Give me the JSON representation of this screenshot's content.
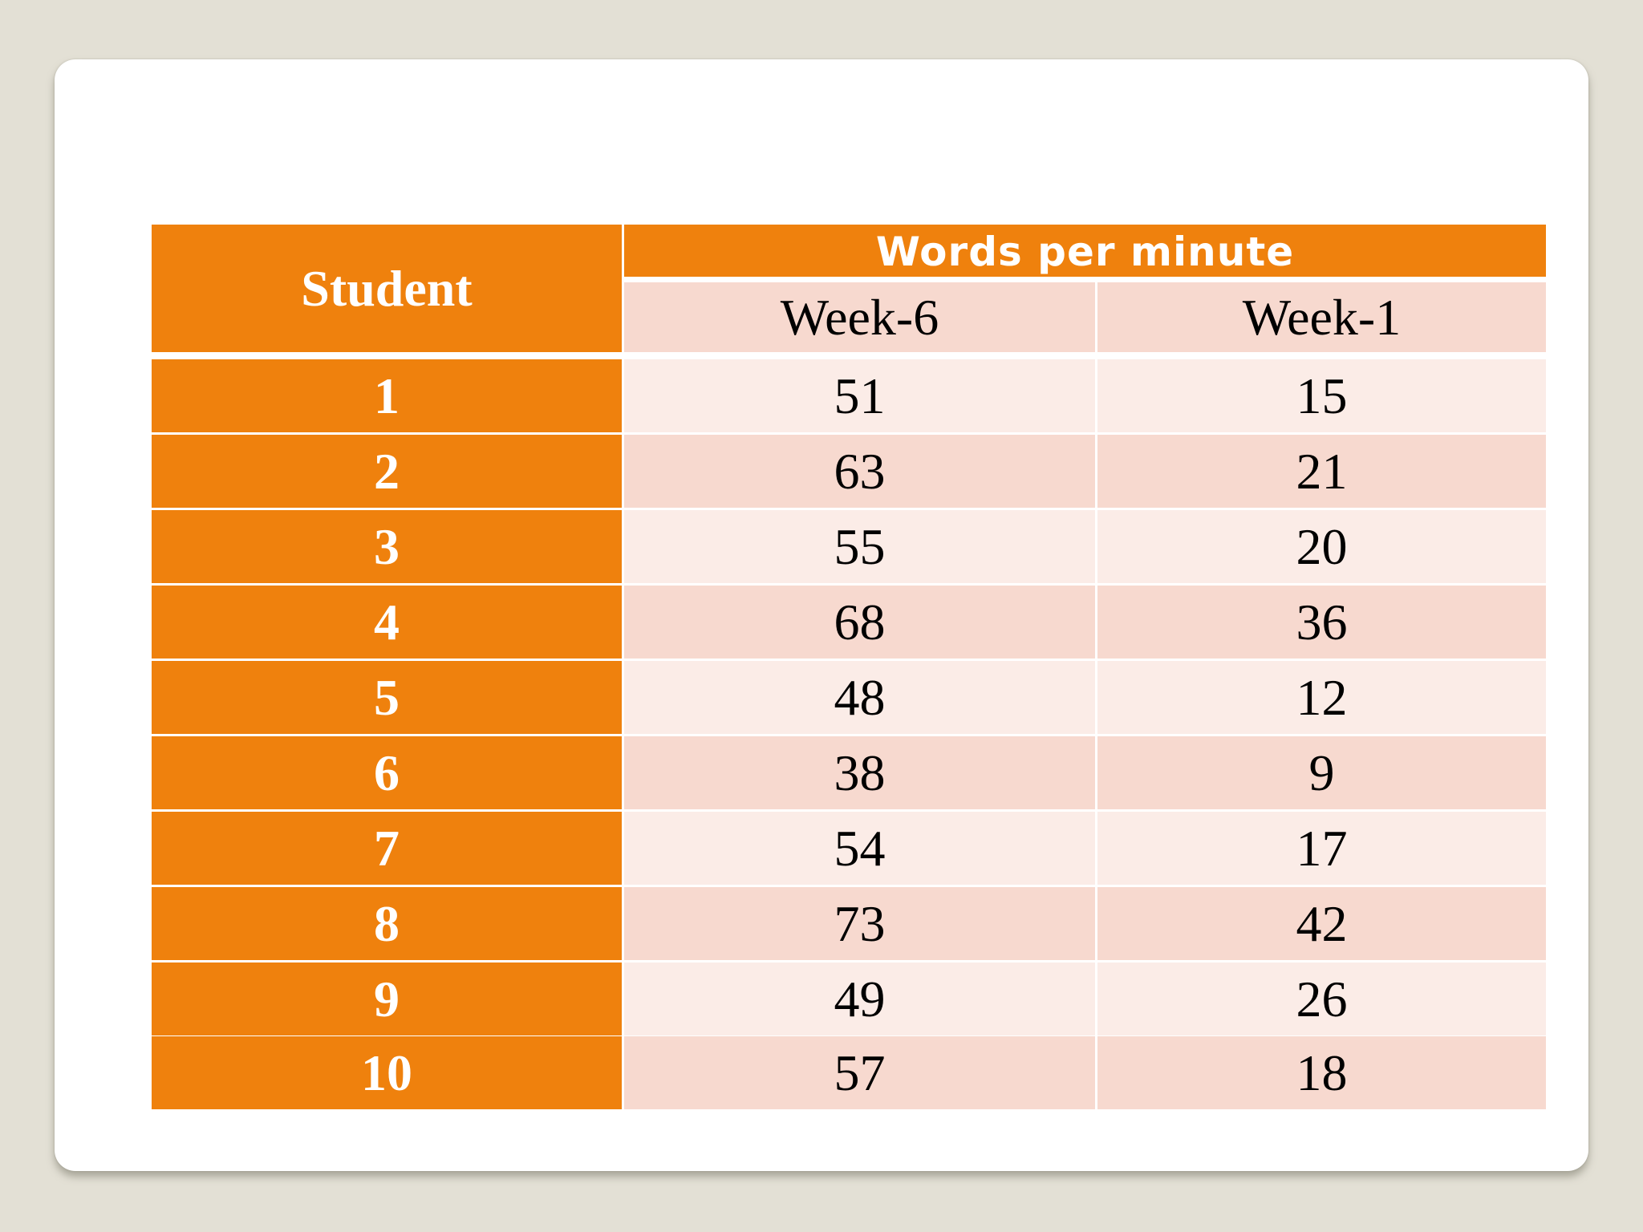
{
  "table": {
    "student_header": "Student",
    "group_header": "Words per minute",
    "columns": [
      "Week-6",
      "Week-1"
    ],
    "rows": [
      {
        "student": "1",
        "week6": "51",
        "week1": "15"
      },
      {
        "student": "2",
        "week6": "63",
        "week1": "21"
      },
      {
        "student": "3",
        "week6": "55",
        "week1": "20"
      },
      {
        "student": "4",
        "week6": "68",
        "week1": "36"
      },
      {
        "student": "5",
        "week6": "48",
        "week1": "12"
      },
      {
        "student": "6",
        "week6": "38",
        "week1": "9"
      },
      {
        "student": "7",
        "week6": "54",
        "week1": "17"
      },
      {
        "student": "8",
        "week6": "73",
        "week1": "42"
      },
      {
        "student": "9",
        "week6": "49",
        "week1": "26"
      },
      {
        "student": "10",
        "week6": "57",
        "week1": "18"
      }
    ]
  },
  "colors": {
    "header_orange": "#ef810d",
    "row_light": "#fbece7",
    "row_dark": "#f7d9cf",
    "background": "#e3e0d5"
  }
}
